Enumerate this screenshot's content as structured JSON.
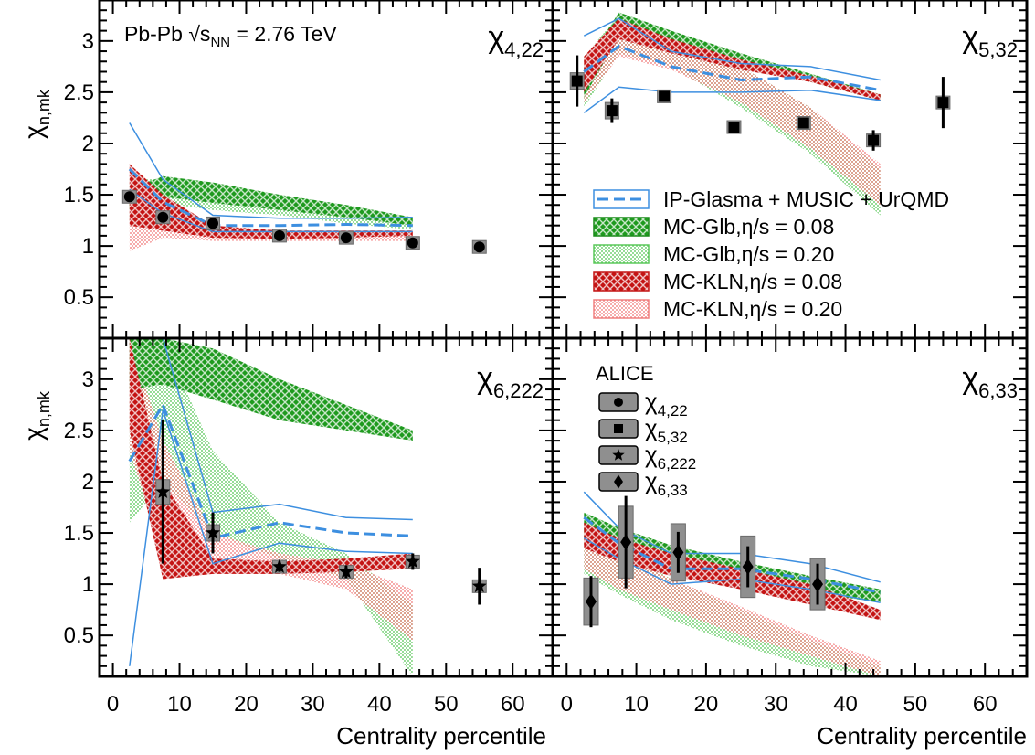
{
  "figure": {
    "energy_label": "Pb-Pb  √s",
    "energy_sub": "NN",
    "energy_value": " = 2.76 TeV",
    "xlabel": "Centrality percentile",
    "ylabel": "χ",
    "ylabel_sub": "n,mk"
  },
  "legend_models": [
    {
      "label": "IP-Glasma + MUSIC + UrQMD",
      "style": "ipglasma",
      "color": "#3d8fe0"
    },
    {
      "label": "MC-Glb,η/s = 0.08",
      "style": "glb008",
      "color": "#1a8a1a"
    },
    {
      "label": "MC-Glb,η/s = 0.20",
      "style": "glb020",
      "color": "#5cc95c"
    },
    {
      "label": "MC-KLN,η/s = 0.08",
      "style": "kln008",
      "color": "#c41414"
    },
    {
      "label": "MC-KLN,η/s = 0.20",
      "style": "kln020",
      "color": "#f08080"
    }
  ],
  "legend_data": {
    "title": "ALICE",
    "entries": [
      {
        "label": "χ",
        "sub": "4,22",
        "marker": "circle"
      },
      {
        "label": "χ",
        "sub": "5,32",
        "marker": "square"
      },
      {
        "label": "χ",
        "sub": "6,222",
        "marker": "star"
      },
      {
        "label": "χ",
        "sub": "6,33",
        "marker": "diamond"
      }
    ]
  },
  "chart_data": [
    {
      "type": "scatter",
      "panel": "top-left",
      "title": "χ",
      "title_sub": "4,22",
      "xlim": [
        -2,
        66
      ],
      "ylim": [
        0.1,
        3.4
      ],
      "xticks": [
        0,
        10,
        20,
        30,
        40,
        50,
        60
      ],
      "yticks": [
        0.5,
        1,
        1.5,
        2,
        2.5,
        3
      ],
      "data": {
        "marker": "circle",
        "x": [
          2.5,
          7.5,
          15,
          25,
          35,
          45,
          55
        ],
        "y": [
          1.48,
          1.28,
          1.22,
          1.1,
          1.08,
          1.03,
          0.99
        ],
        "err": [
          0.04,
          0.03,
          0.02,
          0.02,
          0.02,
          0.02,
          0.02
        ],
        "syst": [
          0.03,
          0.02,
          0.02,
          0.02,
          0.02,
          0.02,
          0.02
        ]
      },
      "ip": {
        "x": [
          2.5,
          7.5,
          15,
          25,
          35,
          45
        ],
        "lo": [
          1.55,
          1.32,
          1.14,
          1.14,
          1.14,
          1.14
        ],
        "mid": [
          1.75,
          1.43,
          1.2,
          1.2,
          1.21,
          1.2
        ],
        "hi": [
          2.2,
          1.65,
          1.3,
          1.27,
          1.27,
          1.28
        ]
      },
      "glb008": {
        "x": [
          2.5,
          7.5,
          15,
          25,
          35,
          45
        ],
        "lo": [
          1.35,
          1.48,
          1.42,
          1.35,
          1.28,
          1.2
        ],
        "hi": [
          1.55,
          1.68,
          1.62,
          1.5,
          1.4,
          1.28
        ]
      },
      "glb020": {
        "x": [
          2.5,
          7.5,
          15,
          25,
          35,
          45
        ],
        "lo": [
          1.25,
          1.42,
          1.35,
          1.3,
          1.22,
          1.16
        ],
        "hi": [
          1.65,
          1.65,
          1.55,
          1.45,
          1.35,
          1.25
        ]
      },
      "kln008": {
        "x": [
          2.5,
          7.5,
          15,
          25,
          35,
          45
        ],
        "lo": [
          1.2,
          1.15,
          1.08,
          1.07,
          1.08,
          1.1
        ],
        "hi": [
          1.8,
          1.5,
          1.2,
          1.15,
          1.15,
          1.15
        ]
      },
      "kln020": {
        "x": [
          2.5,
          7.5,
          15,
          25,
          35,
          45
        ],
        "lo": [
          0.95,
          1.08,
          1.05,
          1.05,
          1.05,
          1.05
        ],
        "hi": [
          1.75,
          1.4,
          1.2,
          1.14,
          1.12,
          1.12
        ]
      }
    },
    {
      "type": "scatter",
      "panel": "top-right",
      "title": "χ",
      "title_sub": "5,32",
      "xlim": [
        -2,
        66
      ],
      "ylim": [
        0.1,
        3.4
      ],
      "xticks": [
        0,
        10,
        20,
        30,
        40,
        50,
        60
      ],
      "yticks": [
        0.5,
        1,
        1.5,
        2,
        2.5,
        3
      ],
      "data": {
        "marker": "square",
        "x": [
          1.5,
          6.5,
          14,
          24,
          34,
          44,
          54
        ],
        "y": [
          2.61,
          2.32,
          2.46,
          2.16,
          2.2,
          2.03,
          2.4
        ],
        "err": [
          0.25,
          0.12,
          0.05,
          0.04,
          0.05,
          0.1,
          0.25
        ],
        "syst": [
          0.08,
          0.08,
          0.06,
          0.05,
          0.05,
          0.06,
          0.06
        ]
      },
      "ip": {
        "x": [
          2.5,
          7.5,
          15,
          25,
          35,
          45
        ],
        "lo": [
          2.3,
          2.55,
          2.5,
          2.5,
          2.52,
          2.42
        ],
        "mid": [
          2.7,
          2.95,
          2.75,
          2.62,
          2.65,
          2.52
        ],
        "hi": [
          3.05,
          3.22,
          2.9,
          2.78,
          2.75,
          2.62
        ]
      },
      "glb008": {
        "x": [
          2.5,
          7.5,
          15,
          25,
          35,
          45
        ],
        "lo": [
          2.45,
          3.05,
          2.95,
          2.75,
          2.6,
          2.42
        ],
        "hi": [
          2.75,
          3.28,
          3.1,
          2.88,
          2.68,
          2.48
        ]
      },
      "glb020": {
        "x": [
          2.5,
          7.5,
          15,
          25,
          35,
          45
        ],
        "lo": [
          2.35,
          2.88,
          2.75,
          2.35,
          1.9,
          1.3
        ],
        "hi": [
          2.85,
          3.25,
          3.05,
          2.75,
          2.35,
          1.75
        ]
      },
      "kln008": {
        "x": [
          2.5,
          7.5,
          15,
          25,
          35,
          45
        ],
        "lo": [
          2.5,
          3.02,
          2.88,
          2.72,
          2.6,
          2.42
        ],
        "hi": [
          2.85,
          3.22,
          3.02,
          2.82,
          2.66,
          2.48
        ]
      },
      "kln020": {
        "x": [
          2.5,
          7.5,
          15,
          25,
          35,
          45
        ],
        "lo": [
          2.4,
          2.85,
          2.72,
          2.4,
          1.95,
          1.4
        ],
        "hi": [
          2.85,
          3.2,
          3.0,
          2.75,
          2.35,
          1.8
        ]
      }
    },
    {
      "type": "scatter",
      "panel": "bottom-left",
      "title": "χ",
      "title_sub": "6,222",
      "xlim": [
        -2,
        66
      ],
      "ylim": [
        0.1,
        3.4
      ],
      "xticks": [
        0,
        10,
        20,
        30,
        40,
        50,
        60
      ],
      "yticks": [
        0.5,
        1,
        1.5,
        2,
        2.5,
        3
      ],
      "data": {
        "marker": "star",
        "x": [
          7.5,
          15,
          25,
          35,
          45,
          55
        ],
        "y": [
          1.9,
          1.5,
          1.17,
          1.12,
          1.22,
          0.98
        ],
        "err": [
          0.7,
          0.2,
          0.05,
          0.06,
          0.08,
          0.18
        ],
        "syst": [
          0.12,
          0.08,
          0.04,
          0.05,
          0.05,
          0.04
        ]
      },
      "ip": {
        "x": [
          2.5,
          7.5,
          15,
          25,
          35,
          45
        ],
        "lo": [
          0.2,
          2.7,
          1.2,
          1.4,
          1.32,
          1.3
        ],
        "mid": [
          2.2,
          2.75,
          1.45,
          1.6,
          1.5,
          1.47
        ],
        "hi": [
          3.4,
          3.4,
          1.7,
          1.78,
          1.65,
          1.63
        ]
      },
      "glb008": {
        "x": [
          2.5,
          7.5,
          15,
          25,
          35,
          45
        ],
        "lo": [
          2.9,
          2.95,
          2.8,
          2.6,
          2.5,
          2.4
        ],
        "hi": [
          3.4,
          3.4,
          3.3,
          3.0,
          2.75,
          2.5
        ]
      },
      "glb020": {
        "x": [
          2.5,
          7.5,
          15,
          25,
          35,
          45
        ],
        "lo": [
          1.6,
          2.0,
          1.5,
          1.25,
          1.05,
          0.1
        ],
        "hi": [
          3.4,
          3.4,
          2.3,
          1.6,
          1.3,
          0.8
        ]
      },
      "kln008": {
        "x": [
          2.5,
          7.5,
          15,
          25,
          35,
          45
        ],
        "lo": [
          2.5,
          1.05,
          1.1,
          1.1,
          1.12,
          1.15
        ],
        "hi": [
          3.4,
          2.0,
          1.25,
          1.22,
          1.25,
          1.3
        ]
      },
      "kln020": {
        "x": [
          2.5,
          7.5,
          15,
          25,
          35,
          45
        ],
        "lo": [
          2.3,
          1.3,
          1.25,
          1.1,
          0.95,
          0.45
        ],
        "hi": [
          3.4,
          2.4,
          1.5,
          1.3,
          1.2,
          0.95
        ]
      }
    },
    {
      "type": "scatter",
      "panel": "bottom-right",
      "title": "χ",
      "title_sub": "6,33",
      "xlim": [
        -2,
        66
      ],
      "ylim": [
        0.1,
        3.4
      ],
      "xticks": [
        0,
        10,
        20,
        30,
        40,
        50,
        60
      ],
      "yticks": [
        0.5,
        1,
        1.5,
        2,
        2.5,
        3
      ],
      "data": {
        "marker": "diamond",
        "x": [
          3.5,
          8.5,
          16,
          26,
          36
        ],
        "y": [
          0.83,
          1.41,
          1.31,
          1.17,
          1.0
        ],
        "err": [
          0.25,
          0.45,
          0.2,
          0.2,
          0.2
        ],
        "syst": [
          0.23,
          0.35,
          0.28,
          0.3,
          0.25
        ]
      },
      "ip": {
        "x": [
          2.5,
          7.5,
          15,
          25,
          35,
          45
        ],
        "lo": [
          1.45,
          1.25,
          1.0,
          1.05,
          0.95,
          0.82
        ],
        "mid": [
          1.65,
          1.4,
          1.15,
          1.15,
          1.05,
          0.92
        ],
        "hi": [
          1.9,
          1.55,
          1.3,
          1.3,
          1.2,
          1.02
        ]
      },
      "glb008": {
        "x": [
          2.5,
          7.5,
          15,
          25,
          35,
          45
        ],
        "lo": [
          1.45,
          1.32,
          1.18,
          1.05,
          0.92,
          0.82
        ],
        "hi": [
          1.7,
          1.55,
          1.38,
          1.22,
          1.08,
          0.95
        ]
      },
      "glb020": {
        "x": [
          2.5,
          7.5,
          15,
          25,
          35,
          45
        ],
        "lo": [
          1.1,
          0.9,
          0.65,
          0.4,
          0.2,
          0.1
        ],
        "hi": [
          1.55,
          1.35,
          1.05,
          0.75,
          0.45,
          0.2
        ]
      },
      "kln008": {
        "x": [
          2.5,
          7.5,
          15,
          25,
          35,
          45
        ],
        "lo": [
          1.35,
          1.22,
          1.08,
          0.95,
          0.8,
          0.65
        ],
        "hi": [
          1.6,
          1.45,
          1.3,
          1.15,
          1.0,
          0.75
        ]
      },
      "kln020": {
        "x": [
          2.5,
          7.5,
          15,
          25,
          35,
          45
        ],
        "lo": [
          1.15,
          0.95,
          0.75,
          0.5,
          0.3,
          0.1
        ],
        "hi": [
          1.5,
          1.3,
          1.05,
          0.78,
          0.5,
          0.25
        ]
      }
    }
  ]
}
